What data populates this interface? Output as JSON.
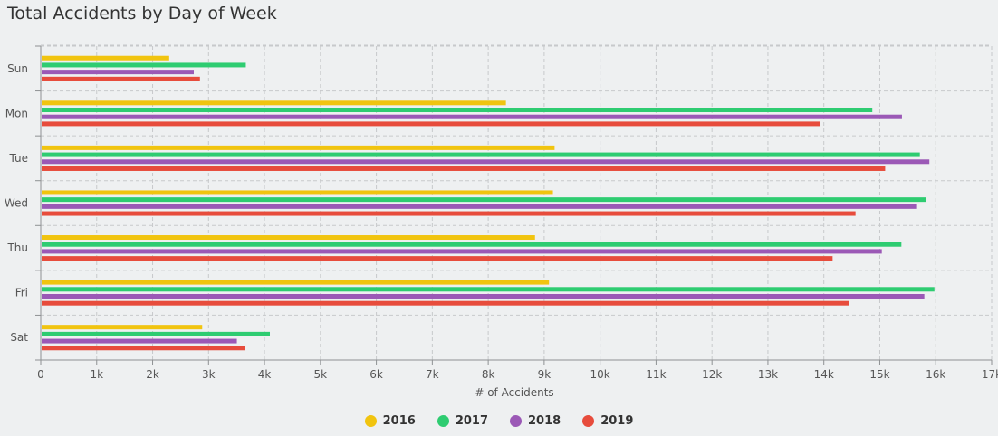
{
  "title": "Total Accidents by Day of Week",
  "chart_data": {
    "type": "bar",
    "orientation": "horizontal",
    "title": "Total Accidents by Day of Week",
    "xlabel": "# of Accidents",
    "ylabel": "",
    "xlim": [
      0,
      17000
    ],
    "x_ticks": [
      0,
      1000,
      2000,
      3000,
      4000,
      5000,
      6000,
      7000,
      8000,
      9000,
      10000,
      11000,
      12000,
      13000,
      14000,
      15000,
      16000,
      17000
    ],
    "x_tick_labels": [
      "0",
      "1k",
      "2k",
      "3k",
      "4k",
      "5k",
      "6k",
      "7k",
      "8k",
      "9k",
      "10k",
      "11k",
      "12k",
      "13k",
      "14k",
      "15k",
      "16k",
      "17k"
    ],
    "grid": true,
    "legend_position": "bottom-center",
    "categories": [
      "Sun",
      "Mon",
      "Tue",
      "Wed",
      "Thu",
      "Fri",
      "Sat"
    ],
    "series": [
      {
        "name": "2016",
        "color": "#f1c40f",
        "values": [
          2280,
          8300,
          9170,
          9140,
          8820,
          9070,
          2870
        ]
      },
      {
        "name": "2017",
        "color": "#2ecc71",
        "values": [
          3650,
          14850,
          15700,
          15810,
          15370,
          15960,
          4080
        ]
      },
      {
        "name": "2018",
        "color": "#9b59b6",
        "values": [
          2720,
          15380,
          15870,
          15650,
          15020,
          15780,
          3490
        ]
      },
      {
        "name": "2019",
        "color": "#e74c3c",
        "values": [
          2830,
          13920,
          15080,
          14550,
          14140,
          14440,
          3640
        ]
      }
    ]
  }
}
